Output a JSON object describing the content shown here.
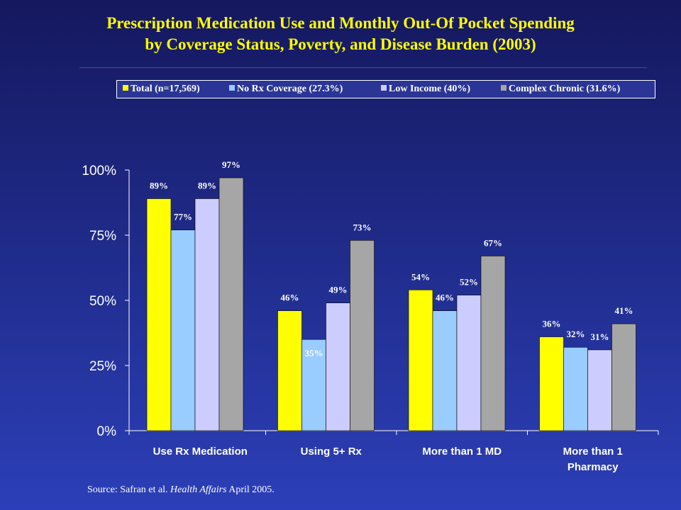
{
  "title_line1": "Prescription Medication Use and Monthly Out-Of Pocket Spending",
  "title_line2": "by Coverage Status, Poverty, and Disease Burden (2003)",
  "source_prefix": "Source:  Safran et al.",
  "source_journal": "Health Affairs",
  "source_suffix": "April 2005.",
  "chart_data": {
    "type": "bar",
    "categories": [
      "Use Rx Medication",
      "Using 5+ Rx",
      "More than 1 MD",
      "More than 1 Pharmacy"
    ],
    "category_lines": [
      [
        "Use Rx Medication"
      ],
      [
        "Using 5+ Rx"
      ],
      [
        "More than 1 MD"
      ],
      [
        "More than 1",
        "Pharmacy"
      ]
    ],
    "series": [
      {
        "name": "Total (n=17,569)",
        "color": "#ffff00",
        "values": [
          89,
          46,
          54,
          36
        ]
      },
      {
        "name": "No Rx Coverage (27.3%)",
        "color": "#99ccff",
        "values": [
          77,
          35,
          46,
          32
        ]
      },
      {
        "name": "Low Income (40%)",
        "color": "#ccccff",
        "values": [
          89,
          49,
          52,
          31
        ]
      },
      {
        "name": "Complex Chronic (31.6%)",
        "color": "#a6a6a6",
        "values": [
          97,
          73,
          67,
          41
        ]
      }
    ],
    "ylim": [
      0,
      100
    ],
    "yticks": [
      0,
      25,
      50,
      75,
      100
    ],
    "ytick_labels": [
      "0%",
      "25%",
      "50%",
      "75%",
      "100%"
    ],
    "data_label_suffix": "%",
    "legend_position": "top",
    "grid": false
  }
}
